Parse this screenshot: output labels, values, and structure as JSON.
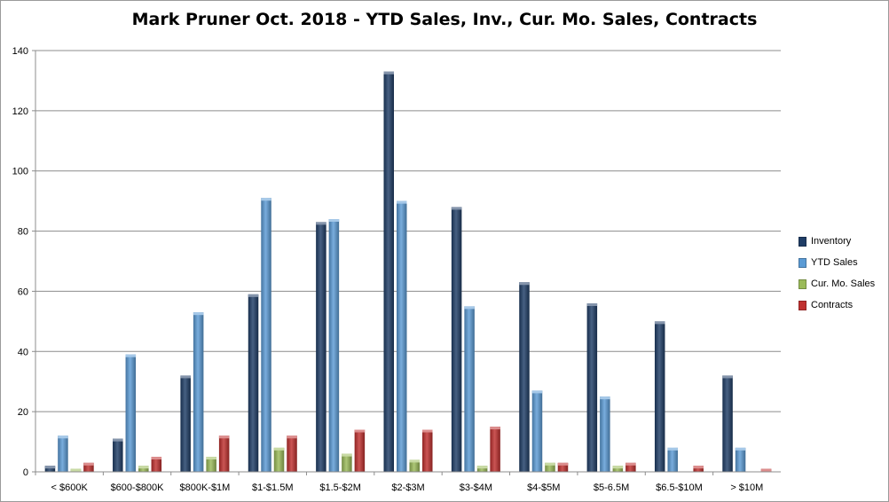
{
  "chart_data": {
    "type": "bar",
    "title": "Mark Pruner Oct. 2018 - YTD Sales, Inv., Cur. Mo. Sales, Contracts",
    "categories": [
      "< $600K",
      "$600-$800K",
      "$800K-$1M",
      "$1-$1.5M",
      "$1.5-$2M",
      "$2-$3M",
      "$3-$4M",
      "$4-$5M",
      "$5-6.5M",
      "$6.5-$10M",
      "> $10M"
    ],
    "series": [
      {
        "name": "Inventory",
        "color": "#1f3d66",
        "values": [
          2,
          11,
          32,
          59,
          83,
          133,
          88,
          63,
          56,
          50,
          32
        ]
      },
      {
        "name": "YTD Sales",
        "color": "#5b9bd5",
        "values": [
          12,
          39,
          53,
          91,
          84,
          90,
          55,
          27,
          25,
          8,
          8
        ]
      },
      {
        "name": "Cur. Mo. Sales",
        "color": "#9bbb59",
        "values": [
          1,
          2,
          5,
          8,
          6,
          4,
          2,
          3,
          2,
          0,
          0
        ]
      },
      {
        "name": "Contracts",
        "color": "#c0302f",
        "values": [
          3,
          5,
          12,
          12,
          14,
          14,
          15,
          3,
          3,
          2,
          1
        ]
      }
    ],
    "yticks": [
      0,
      20,
      40,
      60,
      80,
      100,
      120,
      140
    ],
    "ylim": [
      0,
      140
    ],
    "xlabel": "",
    "ylabel": "",
    "grid": true,
    "legend_position": "right"
  }
}
